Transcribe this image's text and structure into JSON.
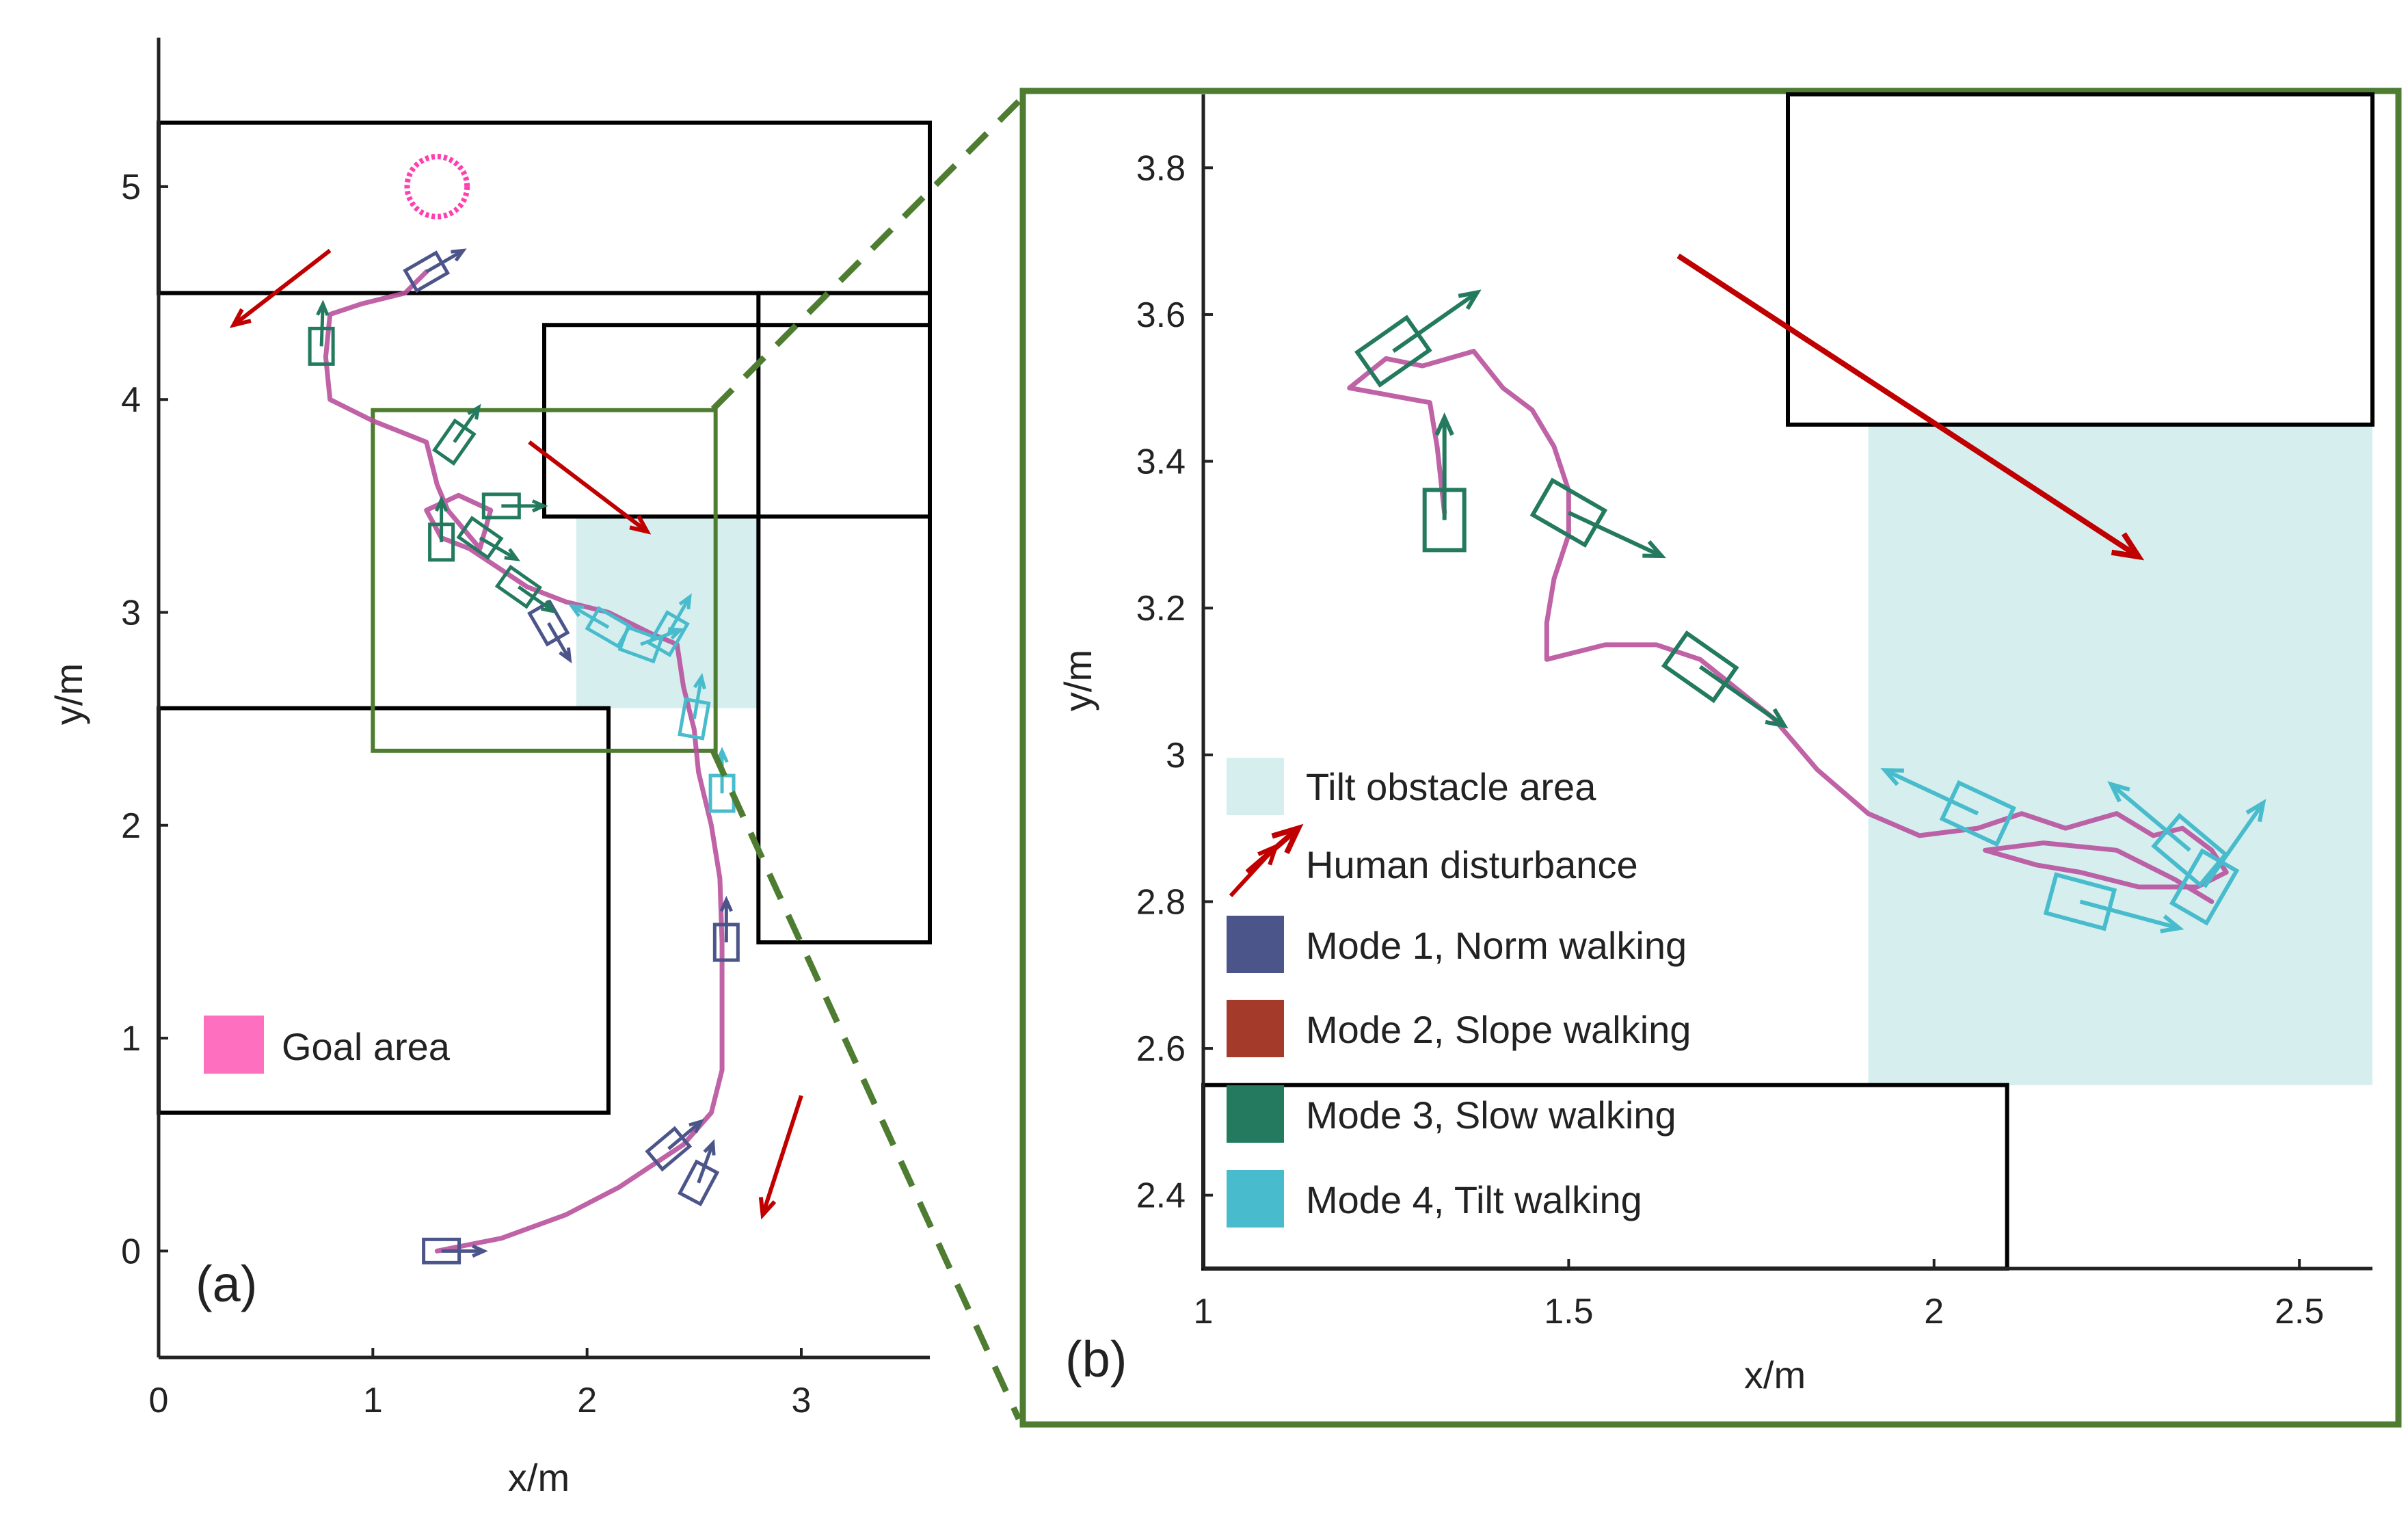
{
  "colors": {
    "trajectory": "#b8519c",
    "goal": "#ff3fb0",
    "goal_legend": "#ff6fbf",
    "disturbance": "#c00000",
    "mode1": "#4c5589",
    "mode2": "#a33a2a",
    "mode3": "#237a5e",
    "mode4": "#48bccc",
    "tilt_area": "#d6eeee",
    "zoom_frame": "#4e7d32",
    "obstacle": "#000000",
    "axis": "#222222"
  },
  "icons": {
    "goal_marker": "goal-circle-icon",
    "disturbance_marker": "red-arrow-icon",
    "robot_marker": "oriented-rectangle-with-arrow-icon"
  },
  "chart_data": [
    {
      "type": "scatter",
      "panel_label": "(a)",
      "xlabel": "x/m",
      "ylabel": "y/m",
      "xlim": [
        0,
        3.6
      ],
      "ylim": [
        -0.5,
        5.7
      ],
      "xticks": [
        "0",
        "1",
        "2",
        "3"
      ],
      "yticks": [
        "0",
        "1",
        "2",
        "3",
        "4",
        "5"
      ],
      "legend": {
        "position": "bottom-left",
        "entries": [
          {
            "label": "Goal area",
            "color": "#ff6fbf"
          }
        ]
      },
      "obstacles": [
        {
          "x0": 0.0,
          "y0": 4.5,
          "x1": 3.6,
          "y1": 5.3
        },
        {
          "x0": 1.8,
          "y0": 3.45,
          "x1": 3.6,
          "y1": 4.35
        },
        {
          "x0": 2.8,
          "y0": 1.45,
          "x1": 3.6,
          "y1": 4.5
        },
        {
          "x0": 0.0,
          "y0": 0.65,
          "x1": 2.1,
          "y1": 2.55
        }
      ],
      "tilt_area": {
        "x0": 1.95,
        "y0": 2.55,
        "x1": 2.8,
        "y1": 3.45
      },
      "goal": {
        "x": 1.3,
        "y": 5.0,
        "r": 0.14
      },
      "zoom_box": {
        "x0": 1.0,
        "y0": 2.35,
        "x1": 2.6,
        "y1": 3.95
      },
      "trajectory": [
        [
          1.3,
          0.0
        ],
        [
          1.6,
          0.06
        ],
        [
          1.9,
          0.17
        ],
        [
          2.15,
          0.3
        ],
        [
          2.3,
          0.4
        ],
        [
          2.45,
          0.5
        ],
        [
          2.58,
          0.65
        ],
        [
          2.63,
          0.85
        ],
        [
          2.63,
          1.15
        ],
        [
          2.63,
          1.45
        ],
        [
          2.62,
          1.75
        ],
        [
          2.58,
          2.0
        ],
        [
          2.52,
          2.25
        ],
        [
          2.5,
          2.45
        ],
        [
          2.45,
          2.65
        ],
        [
          2.42,
          2.85
        ],
        [
          2.3,
          2.9
        ],
        [
          2.1,
          3.0
        ],
        [
          1.9,
          3.05
        ],
        [
          1.72,
          3.12
        ],
        [
          1.6,
          3.2
        ],
        [
          1.45,
          3.3
        ],
        [
          1.32,
          3.35
        ],
        [
          1.25,
          3.48
        ],
        [
          1.4,
          3.55
        ],
        [
          1.55,
          3.48
        ],
        [
          1.5,
          3.3
        ],
        [
          1.35,
          3.48
        ],
        [
          1.3,
          3.6
        ],
        [
          1.25,
          3.8
        ],
        [
          1.0,
          3.9
        ],
        [
          0.8,
          4.0
        ],
        [
          0.78,
          4.2
        ],
        [
          0.8,
          4.4
        ],
        [
          0.95,
          4.45
        ],
        [
          1.15,
          4.5
        ],
        [
          1.25,
          4.6
        ]
      ],
      "modes": [
        {
          "mode": 1,
          "x": 1.32,
          "y": 0.0,
          "angle": 0,
          "arrow": 0
        },
        {
          "mode": 1,
          "x": 2.38,
          "y": 0.48,
          "angle": 40,
          "arrow": 40
        },
        {
          "mode": 1,
          "x": 2.52,
          "y": 0.32,
          "angle": 62,
          "arrow": 70
        },
        {
          "mode": 1,
          "x": 2.65,
          "y": 1.45,
          "angle": 90,
          "arrow": 90
        },
        {
          "mode": 1,
          "x": 1.82,
          "y": 2.95,
          "angle": -60,
          "arrow": -60
        },
        {
          "mode": 1,
          "x": 1.25,
          "y": 4.6,
          "angle": 30,
          "arrow": 30
        },
        {
          "mode": 3,
          "x": 0.76,
          "y": 4.25,
          "angle": 90,
          "arrow": 88
        },
        {
          "mode": 3,
          "x": 1.38,
          "y": 3.8,
          "angle": 55,
          "arrow": 55
        },
        {
          "mode": 3,
          "x": 1.32,
          "y": 3.33,
          "angle": 90,
          "arrow": 90
        },
        {
          "mode": 3,
          "x": 1.5,
          "y": 3.35,
          "angle": -35,
          "arrow": -30
        },
        {
          "mode": 3,
          "x": 1.6,
          "y": 3.5,
          "angle": 0,
          "arrow": 0
        },
        {
          "mode": 3,
          "x": 1.68,
          "y": 3.12,
          "angle": -35,
          "arrow": -35
        },
        {
          "mode": 4,
          "x": 2.1,
          "y": 2.93,
          "angle": -30,
          "arrow": 150
        },
        {
          "mode": 4,
          "x": 2.25,
          "y": 2.85,
          "angle": -20,
          "arrow": 20
        },
        {
          "mode": 4,
          "x": 2.38,
          "y": 2.9,
          "angle": 60,
          "arrow": 60
        },
        {
          "mode": 4,
          "x": 2.5,
          "y": 2.5,
          "angle": 80,
          "arrow": 80
        },
        {
          "mode": 4,
          "x": 2.63,
          "y": 2.15,
          "angle": 90,
          "arrow": 90
        }
      ],
      "disturbances": [
        {
          "x0": 0.8,
          "y0": 4.7,
          "x1": 0.35,
          "y1": 4.35
        },
        {
          "x0": 1.73,
          "y0": 3.8,
          "x1": 2.28,
          "y1": 3.38
        },
        {
          "x0": 3.0,
          "y0": 0.73,
          "x1": 2.82,
          "y1": 0.17
        }
      ]
    },
    {
      "type": "scatter",
      "panel_label": "(b)",
      "xlabel": "x/m",
      "ylabel": "y/m",
      "xlim": [
        1.0,
        2.6
      ],
      "ylim": [
        2.3,
        3.9
      ],
      "xticks": [
        "1",
        "1.5",
        "2",
        "2.5"
      ],
      "yticks": [
        "2.4",
        "2.6",
        "2.8",
        "3",
        "3.2",
        "3.4",
        "3.6",
        "3.8"
      ],
      "legend": {
        "position": "bottom-left",
        "entries": [
          {
            "label": "Tilt obstacle area",
            "color": "#d6eeee"
          },
          {
            "label": "Human disturbance",
            "color": "#c00000"
          },
          {
            "label": "Mode 1, Norm walking",
            "color": "#4c5589"
          },
          {
            "label": "Mode 2, Slope walking",
            "color": "#a33a2a"
          },
          {
            "label": "Mode 3, Slow walking",
            "color": "#237a5e"
          },
          {
            "label": "Mode 4, Tilt walking",
            "color": "#48bccc"
          }
        ]
      },
      "obstacles": [
        {
          "x0": 1.8,
          "y0": 3.45,
          "x1": 2.6,
          "y1": 3.95
        },
        {
          "x0": 0.9,
          "y0": 2.2,
          "x1": 2.1,
          "y1": 2.55
        }
      ],
      "tilt_area": {
        "x0": 1.91,
        "y0": 2.55,
        "x1": 2.6,
        "y1": 3.45
      },
      "trajectory": [
        [
          1.33,
          3.33
        ],
        [
          1.32,
          3.42
        ],
        [
          1.31,
          3.48
        ],
        [
          1.2,
          3.5
        ],
        [
          1.25,
          3.54
        ],
        [
          1.3,
          3.53
        ],
        [
          1.37,
          3.55
        ],
        [
          1.41,
          3.5
        ],
        [
          1.45,
          3.47
        ],
        [
          1.48,
          3.42
        ],
        [
          1.5,
          3.36
        ],
        [
          1.5,
          3.3
        ],
        [
          1.48,
          3.24
        ],
        [
          1.47,
          3.18
        ],
        [
          1.47,
          3.13
        ],
        [
          1.55,
          3.15
        ],
        [
          1.62,
          3.15
        ],
        [
          1.68,
          3.13
        ],
        [
          1.73,
          3.09
        ],
        [
          1.78,
          3.05
        ],
        [
          1.84,
          2.98
        ],
        [
          1.91,
          2.92
        ],
        [
          1.98,
          2.89
        ],
        [
          2.06,
          2.9
        ],
        [
          2.12,
          2.92
        ],
        [
          2.18,
          2.9
        ],
        [
          2.25,
          2.92
        ],
        [
          2.3,
          2.89
        ],
        [
          2.34,
          2.9
        ],
        [
          2.38,
          2.87
        ],
        [
          2.4,
          2.84
        ],
        [
          2.36,
          2.82
        ],
        [
          2.28,
          2.82
        ],
        [
          2.2,
          2.84
        ],
        [
          2.14,
          2.85
        ],
        [
          2.07,
          2.87
        ],
        [
          2.15,
          2.88
        ],
        [
          2.25,
          2.87
        ],
        [
          2.33,
          2.83
        ],
        [
          2.38,
          2.8
        ]
      ],
      "modes": [
        {
          "mode": 3,
          "x": 1.26,
          "y": 3.55,
          "angle": 35,
          "arrow": 35
        },
        {
          "mode": 3,
          "x": 1.33,
          "y": 3.32,
          "angle": 90,
          "arrow": 90
        },
        {
          "mode": 3,
          "x": 1.5,
          "y": 3.33,
          "angle": -30,
          "arrow": -25
        },
        {
          "mode": 3,
          "x": 1.68,
          "y": 3.12,
          "angle": -35,
          "arrow": -35
        },
        {
          "mode": 4,
          "x": 2.06,
          "y": 2.92,
          "angle": -25,
          "arrow": 155
        },
        {
          "mode": 4,
          "x": 2.2,
          "y": 2.8,
          "angle": -15,
          "arrow": -15
        },
        {
          "mode": 4,
          "x": 2.35,
          "y": 2.87,
          "angle": -40,
          "arrow": 140
        },
        {
          "mode": 4,
          "x": 2.37,
          "y": 2.82,
          "angle": 60,
          "arrow": 55
        }
      ],
      "disturbances": [
        {
          "x0": 1.65,
          "y0": 3.68,
          "x1": 2.28,
          "y1": 3.27
        },
        {
          "x0": 1.06,
          "y0": 2.84,
          "x1": 1.13,
          "y1": 2.9
        }
      ]
    }
  ]
}
